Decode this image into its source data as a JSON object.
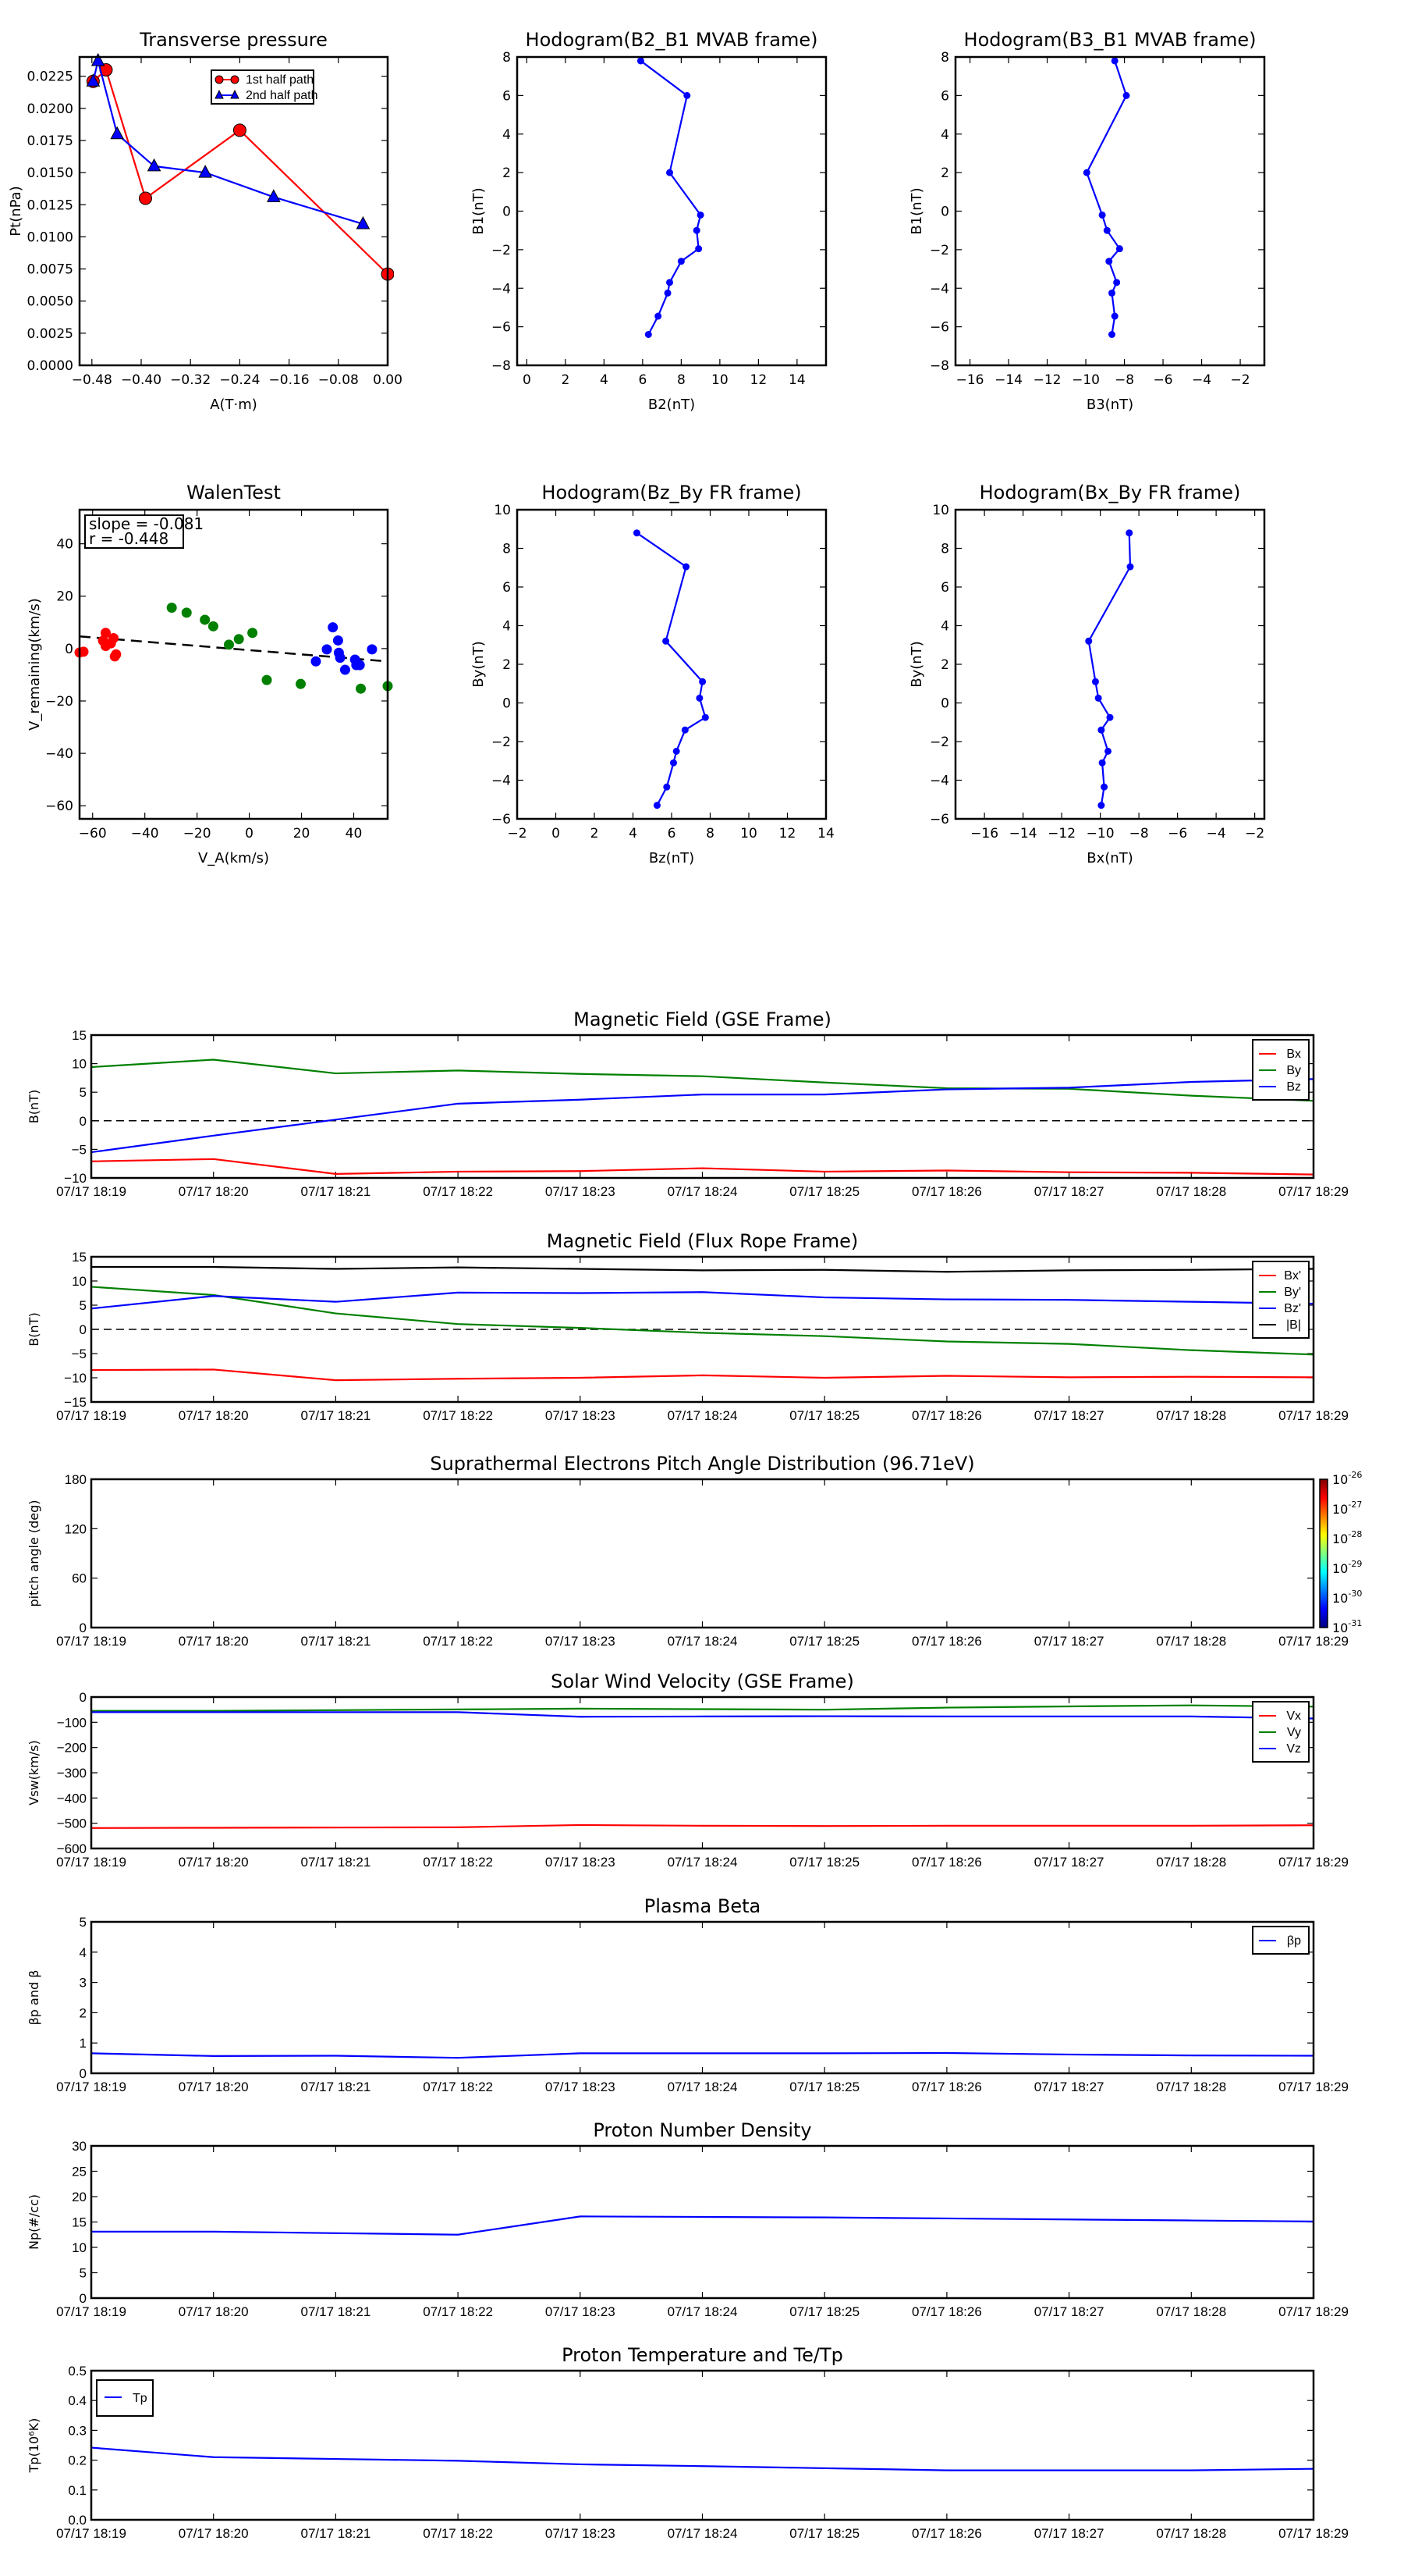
{
  "chart_data": [
    {
      "id": "transverse-pressure",
      "type": "line",
      "title": "Transverse pressure",
      "xlabel": "A(T·m)",
      "ylabel": "Pt(nPa)",
      "xlim": [
        -0.5,
        0.0
      ],
      "ylim": [
        0.0,
        0.024
      ],
      "xticks": [
        -0.48,
        -0.4,
        -0.32,
        -0.24,
        -0.16,
        -0.08,
        0.0
      ],
      "xtick_labels": [
        "−0.48",
        "−0.40",
        "−0.32",
        "−0.24",
        "−0.16",
        "−0.08",
        "0.00"
      ],
      "yticks": [
        0.0,
        0.0025,
        0.005,
        0.0075,
        0.01,
        0.0125,
        0.015,
        0.0175,
        0.02,
        0.0225
      ],
      "ytick_labels": [
        "0.0000",
        "0.0025",
        "0.0050",
        "0.0075",
        "0.0100",
        "0.0125",
        "0.0150",
        "0.0175",
        "0.0200",
        "0.0225"
      ],
      "legend": "top-center",
      "series": [
        {
          "name": "1st half path",
          "color": "#ff0000",
          "marker": "circle",
          "x": [
            -0.478,
            -0.457,
            -0.393,
            -0.24,
            0.0
          ],
          "y": [
            0.0221,
            0.023,
            0.013,
            0.0183,
            0.0071
          ]
        },
        {
          "name": "2nd half path",
          "color": "#0000ff",
          "marker": "triangle",
          "x": [
            -0.478,
            -0.47,
            -0.439,
            -0.379,
            -0.296,
            -0.185,
            -0.04
          ],
          "y": [
            0.0221,
            0.0237,
            0.018,
            0.0155,
            0.015,
            0.0131,
            0.011
          ]
        }
      ]
    },
    {
      "id": "hodogram-b2-b1",
      "type": "line",
      "title": "Hodogram(B2_B1 MVAB frame)",
      "xlabel": "B2(nT)",
      "ylabel": "B1(nT)",
      "xlim": [
        -0.5,
        15.5
      ],
      "ylim": [
        -8,
        8
      ],
      "xticks": [
        0,
        2,
        4,
        6,
        8,
        10,
        12,
        14
      ],
      "xtick_labels": [
        "0",
        "2",
        "4",
        "6",
        "8",
        "10",
        "12",
        "14"
      ],
      "yticks": [
        -8,
        -6,
        -4,
        -2,
        0,
        2,
        4,
        6,
        8
      ],
      "ytick_labels": [
        "−8",
        "−6",
        "−4",
        "−2",
        "0",
        "2",
        "4",
        "6",
        "8"
      ],
      "series": [
        {
          "name": "hodogram",
          "color": "#0000ff",
          "marker": "dot",
          "x": [
            5.9,
            8.3,
            7.4,
            9.0,
            8.8,
            8.9,
            8.0,
            7.4,
            7.3,
            6.8,
            6.3
          ],
          "y": [
            7.8,
            6.0,
            2.0,
            -0.2,
            -1.0,
            -1.95,
            -2.6,
            -3.7,
            -4.25,
            -5.45,
            -6.4
          ]
        }
      ]
    },
    {
      "id": "hodogram-b3-b1",
      "type": "line",
      "title": "Hodogram(B3_B1 MVAB frame)",
      "xlabel": "B3(nT)",
      "ylabel": "B1(nT)",
      "xlim": [
        -16.75,
        -0.75
      ],
      "ylim": [
        -8,
        8
      ],
      "xticks": [
        -16,
        -14,
        -12,
        -10,
        -8,
        -6,
        -4,
        -2
      ],
      "xtick_labels": [
        "−16",
        "−14",
        "−12",
        "−10",
        "−8",
        "−6",
        "−4",
        "−2"
      ],
      "yticks": [
        -8,
        -6,
        -4,
        -2,
        0,
        2,
        4,
        6,
        8
      ],
      "ytick_labels": [
        "−8",
        "−6",
        "−4",
        "−2",
        "0",
        "2",
        "4",
        "6",
        "8"
      ],
      "series": [
        {
          "name": "hodogram",
          "color": "#0000ff",
          "marker": "dot",
          "x": [
            -8.5,
            -7.9,
            -9.95,
            -9.15,
            -8.9,
            -8.25,
            -8.8,
            -8.4,
            -8.65,
            -8.5,
            -8.65
          ],
          "y": [
            7.8,
            6.0,
            2.0,
            -0.2,
            -1.0,
            -1.95,
            -2.6,
            -3.7,
            -4.25,
            -5.45,
            -6.4
          ]
        }
      ]
    },
    {
      "id": "walen-test",
      "type": "scatter",
      "title": "WalenTest",
      "xlabel": "V_A(km/s)",
      "ylabel": "V_remaining(km/s)",
      "xlim": [
        -65,
        53
      ],
      "ylim": [
        -65,
        53
      ],
      "xticks": [
        -60,
        -40,
        -20,
        0,
        20,
        40
      ],
      "xtick_labels": [
        "−60",
        "−40",
        "−20",
        "0",
        "20",
        "40"
      ],
      "yticks": [
        -60,
        -40,
        -20,
        0,
        20,
        40
      ],
      "ytick_labels": [
        "−60",
        "−40",
        "−20",
        "0",
        "20",
        "40"
      ],
      "annotation": {
        "slope_text": "slope = -0.081",
        "r_text": "r = -0.448"
      },
      "fit": {
        "slope": -0.081,
        "intercept": -0.6,
        "style": "dashed",
        "color": "#000000"
      },
      "series": [
        {
          "name": "red",
          "color": "#ff0000",
          "x": [
            -65,
            -63.5,
            -56,
            -55,
            -55,
            -53,
            -52,
            -51.5,
            -51
          ],
          "y": [
            -1.5,
            -1.2,
            3,
            6,
            1,
            2,
            4,
            -3,
            -2.2
          ]
        },
        {
          "name": "green",
          "color": "#008000",
          "x": [
            -29.7,
            -24,
            -17,
            -13.8,
            -7.8,
            -4,
            1.2,
            6.7,
            19.7,
            42.7,
            53
          ],
          "y": [
            15.6,
            13.7,
            11,
            8.5,
            1.5,
            3.6,
            6,
            -12,
            -13.5,
            -15.3,
            -14.3
          ]
        },
        {
          "name": "blue",
          "color": "#0000ff",
          "x": [
            25.5,
            29.7,
            32,
            34,
            34.3,
            34.8,
            36.7,
            40.5,
            41,
            42.3,
            47
          ],
          "y": [
            -4.9,
            -0.3,
            8.1,
            3.1,
            -1.6,
            -3.5,
            -8.1,
            -4.2,
            -6.3,
            -6.3,
            -0.3
          ]
        }
      ]
    },
    {
      "id": "hodogram-bz-by",
      "type": "line",
      "title": "Hodogram(Bz_By FR frame)",
      "xlabel": "Bz(nT)",
      "ylabel": "By(nT)",
      "xlim": [
        -2,
        14
      ],
      "ylim": [
        -6,
        10
      ],
      "xticks": [
        -2,
        0,
        2,
        4,
        6,
        8,
        10,
        12,
        14
      ],
      "xtick_labels": [
        "−2",
        "0",
        "2",
        "4",
        "6",
        "8",
        "10",
        "12",
        "14"
      ],
      "yticks": [
        -6,
        -4,
        -2,
        0,
        2,
        4,
        6,
        8,
        10
      ],
      "ytick_labels": [
        "−6",
        "−4",
        "−2",
        "0",
        "2",
        "4",
        "6",
        "8",
        "10"
      ],
      "series": [
        {
          "name": "hodogram",
          "color": "#0000ff",
          "marker": "dot",
          "x": [
            4.2,
            6.75,
            5.7,
            7.6,
            7.45,
            7.75,
            6.7,
            6.25,
            6.1,
            5.75,
            5.25
          ],
          "y": [
            8.8,
            7.05,
            3.2,
            1.1,
            0.25,
            -0.75,
            -1.4,
            -2.5,
            -3.1,
            -4.35,
            -5.3
          ]
        }
      ]
    },
    {
      "id": "hodogram-bx-by",
      "type": "line",
      "title": "Hodogram(Bx_By FR frame)",
      "xlabel": "Bx(nT)",
      "ylabel": "By(nT)",
      "xlim": [
        -17.5,
        -1.5
      ],
      "ylim": [
        -6,
        10
      ],
      "xticks": [
        -16,
        -14,
        -12,
        -10,
        -8,
        -6,
        -4,
        -2
      ],
      "xtick_labels": [
        "−16",
        "−14",
        "−12",
        "−10",
        "−8",
        "−6",
        "−4",
        "−2"
      ],
      "yticks": [
        -6,
        -4,
        -2,
        0,
        2,
        4,
        6,
        8,
        10
      ],
      "ytick_labels": [
        "−6",
        "−4",
        "−2",
        "0",
        "2",
        "4",
        "6",
        "8",
        "10"
      ],
      "series": [
        {
          "name": "hodogram",
          "color": "#0000ff",
          "marker": "dot",
          "x": [
            -8.5,
            -8.45,
            -10.6,
            -10.25,
            -10.1,
            -9.5,
            -9.95,
            -9.6,
            -9.9,
            -9.8,
            -9.95
          ],
          "y": [
            8.8,
            7.05,
            3.2,
            1.1,
            0.25,
            -0.75,
            -1.4,
            -2.5,
            -3.1,
            -4.35,
            -5.3
          ]
        }
      ]
    },
    {
      "id": "magnetic-field-gse",
      "type": "line",
      "title": "Magnetic Field (GSE Frame)",
      "ylabel": "B(nT)",
      "ylim": [
        -10,
        15
      ],
      "yticks": [
        -10,
        -5,
        0,
        5,
        10,
        15
      ],
      "ytick_labels": [
        "−10",
        "−5",
        "0",
        "5",
        "10",
        "15"
      ],
      "zero_line": true,
      "legend": "top-right",
      "categories": [
        "07/17 18:19",
        "07/17 18:20",
        "07/17 18:21",
        "07/17 18:22",
        "07/17 18:23",
        "07/17 18:24",
        "07/17 18:25",
        "07/17 18:26",
        "07/17 18:27",
        "07/17 18:28",
        "07/17 18:29"
      ],
      "series": [
        {
          "name": "Bx",
          "color": "#ff0000",
          "values": [
            -7.1,
            -6.7,
            -9.3,
            -8.9,
            -8.8,
            -8.3,
            -8.9,
            -8.7,
            -9.0,
            -9.1,
            -9.4
          ]
        },
        {
          "name": "By",
          "color": "#008000",
          "values": [
            9.4,
            10.7,
            8.3,
            8.8,
            8.2,
            7.8,
            6.7,
            5.7,
            5.6,
            4.4,
            3.5
          ]
        },
        {
          "name": "Bz",
          "color": "#0000ff",
          "values": [
            -5.5,
            -2.6,
            0.2,
            3.0,
            3.7,
            4.6,
            4.6,
            5.5,
            5.8,
            6.8,
            7.3
          ]
        }
      ]
    },
    {
      "id": "magnetic-field-flux-rope",
      "type": "line",
      "title": "Magnetic Field (Flux Rope Frame)",
      "ylabel": "B(nT)",
      "ylim": [
        -15,
        15
      ],
      "yticks": [
        -15,
        -10,
        -5,
        0,
        5,
        10,
        15
      ],
      "ytick_labels": [
        "−15",
        "−10",
        "−5",
        "0",
        "5",
        "10",
        "15"
      ],
      "zero_line": true,
      "legend": "top-right",
      "categories": [
        "07/17 18:19",
        "07/17 18:20",
        "07/17 18:21",
        "07/17 18:22",
        "07/17 18:23",
        "07/17 18:24",
        "07/17 18:25",
        "07/17 18:26",
        "07/17 18:27",
        "07/17 18:28",
        "07/17 18:29"
      ],
      "series": [
        {
          "name": "Bx'",
          "color": "#ff0000",
          "values": [
            -8.4,
            -8.3,
            -10.5,
            -10.2,
            -10.0,
            -9.5,
            -10.0,
            -9.6,
            -9.9,
            -9.8,
            -9.9
          ]
        },
        {
          "name": "By'",
          "color": "#008000",
          "values": [
            8.8,
            7.1,
            3.3,
            1.1,
            0.3,
            -0.7,
            -1.4,
            -2.5,
            -3.0,
            -4.3,
            -5.2
          ]
        },
        {
          "name": "Bz'",
          "color": "#0000ff",
          "values": [
            4.3,
            6.9,
            5.7,
            7.6,
            7.5,
            7.7,
            6.6,
            6.2,
            6.1,
            5.7,
            5.3
          ]
        },
        {
          "name": "|B|",
          "color": "#000000",
          "values": [
            12.9,
            12.9,
            12.5,
            12.8,
            12.5,
            12.2,
            12.3,
            11.9,
            12.2,
            12.3,
            12.5
          ]
        }
      ]
    },
    {
      "id": "pitch-angle-distribution",
      "type": "heatmap",
      "title": "Suprathermal Electrons Pitch Angle Distribution (96.71eV)",
      "ylabel": "pitch angle (deg)",
      "ylim": [
        0,
        180
      ],
      "yticks": [
        0,
        60,
        120,
        180
      ],
      "ytick_labels": [
        "0",
        "60",
        "120",
        "180"
      ],
      "categories": [
        "07/17 18:19",
        "07/17 18:20",
        "07/17 18:21",
        "07/17 18:22",
        "07/17 18:23",
        "07/17 18:24",
        "07/17 18:25",
        "07/17 18:26",
        "07/17 18:27",
        "07/17 18:28",
        "07/17 18:29"
      ],
      "values": [],
      "colorbar": {
        "scale": "log",
        "range": [
          1e-31,
          1e-26
        ],
        "tick_labels": [
          {
            "base": "10",
            "exp": "-26"
          },
          {
            "base": "10",
            "exp": "-27"
          },
          {
            "base": "10",
            "exp": "-28"
          },
          {
            "base": "10",
            "exp": "-29"
          },
          {
            "base": "10",
            "exp": "-30"
          },
          {
            "base": "10",
            "exp": "-31"
          }
        ],
        "colormap": "jet"
      }
    },
    {
      "id": "solar-wind-velocity",
      "type": "line",
      "title": "Solar Wind Velocity (GSE Frame)",
      "ylabel": "Vsw(km/s)",
      "ylim": [
        -600,
        0
      ],
      "yticks": [
        -600,
        -500,
        -400,
        -300,
        -200,
        -100,
        0
      ],
      "ytick_labels": [
        "−600",
        "−500",
        "−400",
        "−300",
        "−200",
        "−100",
        "0"
      ],
      "legend": "top-right",
      "categories": [
        "07/17 18:19",
        "07/17 18:20",
        "07/17 18:21",
        "07/17 18:22",
        "07/17 18:23",
        "07/17 18:24",
        "07/17 18:25",
        "07/17 18:26",
        "07/17 18:27",
        "07/17 18:28",
        "07/17 18:29"
      ],
      "series": [
        {
          "name": "Vx",
          "color": "#ff0000",
          "values": [
            -519,
            -518,
            -517,
            -516,
            -507,
            -510,
            -511,
            -510,
            -510,
            -510,
            -508
          ]
        },
        {
          "name": "Vy",
          "color": "#008000",
          "values": [
            -55,
            -55,
            -52,
            -49,
            -46,
            -48,
            -50,
            -42,
            -37,
            -33,
            -38
          ]
        },
        {
          "name": "Vz",
          "color": "#0000ff",
          "values": [
            -60,
            -60,
            -60,
            -60,
            -78,
            -77,
            -76,
            -77,
            -77,
            -77,
            -85
          ]
        }
      ]
    },
    {
      "id": "plasma-beta",
      "type": "line",
      "title": "Plasma Beta",
      "ylabel": "βp and β",
      "ylim": [
        0,
        5
      ],
      "yticks": [
        0,
        1,
        2,
        3,
        4,
        5
      ],
      "ytick_labels": [
        "0",
        "1",
        "2",
        "3",
        "4",
        "5"
      ],
      "legend": "top-right",
      "categories": [
        "07/17 18:19",
        "07/17 18:20",
        "07/17 18:21",
        "07/17 18:22",
        "07/17 18:23",
        "07/17 18:24",
        "07/17 18:25",
        "07/17 18:26",
        "07/17 18:27",
        "07/17 18:28",
        "07/17 18:29"
      ],
      "series": [
        {
          "name": "βp",
          "color": "#0000ff",
          "values": [
            0.66,
            0.57,
            0.58,
            0.51,
            0.66,
            0.66,
            0.66,
            0.67,
            0.62,
            0.59,
            0.58
          ]
        }
      ]
    },
    {
      "id": "proton-number-density",
      "type": "line",
      "title": "Proton Number Density",
      "ylabel": "Np(#/cc)",
      "ylim": [
        0,
        30
      ],
      "yticks": [
        0,
        5,
        10,
        15,
        20,
        25,
        30
      ],
      "ytick_labels": [
        "0",
        "5",
        "10",
        "15",
        "20",
        "25",
        "30"
      ],
      "categories": [
        "07/17 18:19",
        "07/17 18:20",
        "07/17 18:21",
        "07/17 18:22",
        "07/17 18:23",
        "07/17 18:24",
        "07/17 18:25",
        "07/17 18:26",
        "07/17 18:27",
        "07/17 18:28",
        "07/17 18:29"
      ],
      "series": [
        {
          "name": "Np",
          "color": "#0000ff",
          "values": [
            13.1,
            13.1,
            12.8,
            12.5,
            16.1,
            16.0,
            15.9,
            15.7,
            15.5,
            15.3,
            15.1
          ]
        }
      ]
    },
    {
      "id": "proton-temperature",
      "type": "line",
      "title": "Proton Temperature and Te/Tp",
      "ylabel": "Tp(10⁶K)",
      "ylim": [
        0.0,
        0.5
      ],
      "yticks": [
        0.0,
        0.1,
        0.2,
        0.3,
        0.4,
        0.5
      ],
      "ytick_labels": [
        "0.0",
        "0.1",
        "0.2",
        "0.3",
        "0.4",
        "0.5"
      ],
      "legend": "top-left",
      "categories": [
        "07/17 18:19",
        "07/17 18:20",
        "07/17 18:21",
        "07/17 18:22",
        "07/17 18:23",
        "07/17 18:24",
        "07/17 18:25",
        "07/17 18:26",
        "07/17 18:27",
        "07/17 18:28",
        "07/17 18:29"
      ],
      "series": [
        {
          "name": "Tp",
          "color": "#0000ff",
          "values": [
            0.242,
            0.21,
            0.204,
            0.198,
            0.186,
            0.18,
            0.173,
            0.166,
            0.166,
            0.166,
            0.171
          ]
        }
      ]
    }
  ]
}
